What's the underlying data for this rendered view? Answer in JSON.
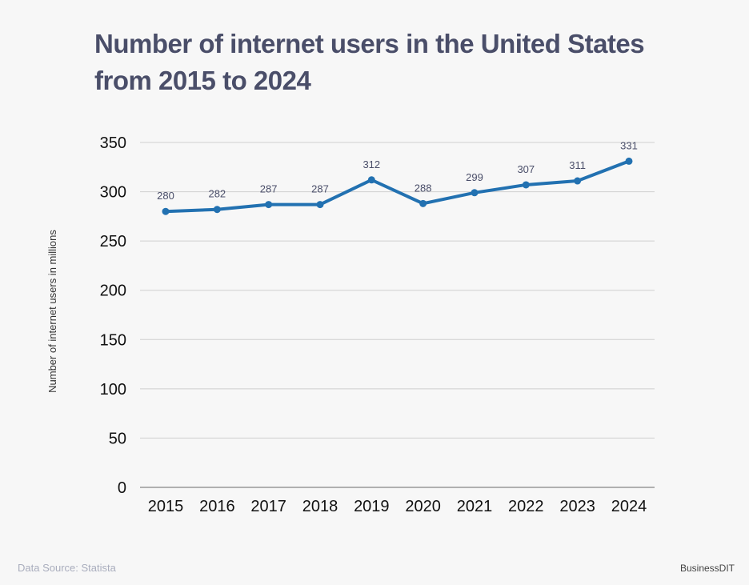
{
  "chart_data": {
    "type": "line",
    "title": "Number of internet users in the United States from 2015 to 2024",
    "xlabel": "",
    "ylabel": "Number of internet users in millions",
    "categories": [
      "2015",
      "2016",
      "2017",
      "2018",
      "2019",
      "2020",
      "2021",
      "2022",
      "2023",
      "2024"
    ],
    "values": [
      280,
      282,
      287,
      287,
      312,
      288,
      299,
      307,
      311,
      331
    ],
    "ylim": [
      0,
      350
    ],
    "yticks": [
      0,
      50,
      100,
      150,
      200,
      250,
      300,
      350
    ],
    "grid": true,
    "data_labels": true,
    "line_color": "#2271b1",
    "legend": "none"
  },
  "footer": {
    "source": "Data Source: Statista",
    "brand": "BusinessDIT"
  }
}
